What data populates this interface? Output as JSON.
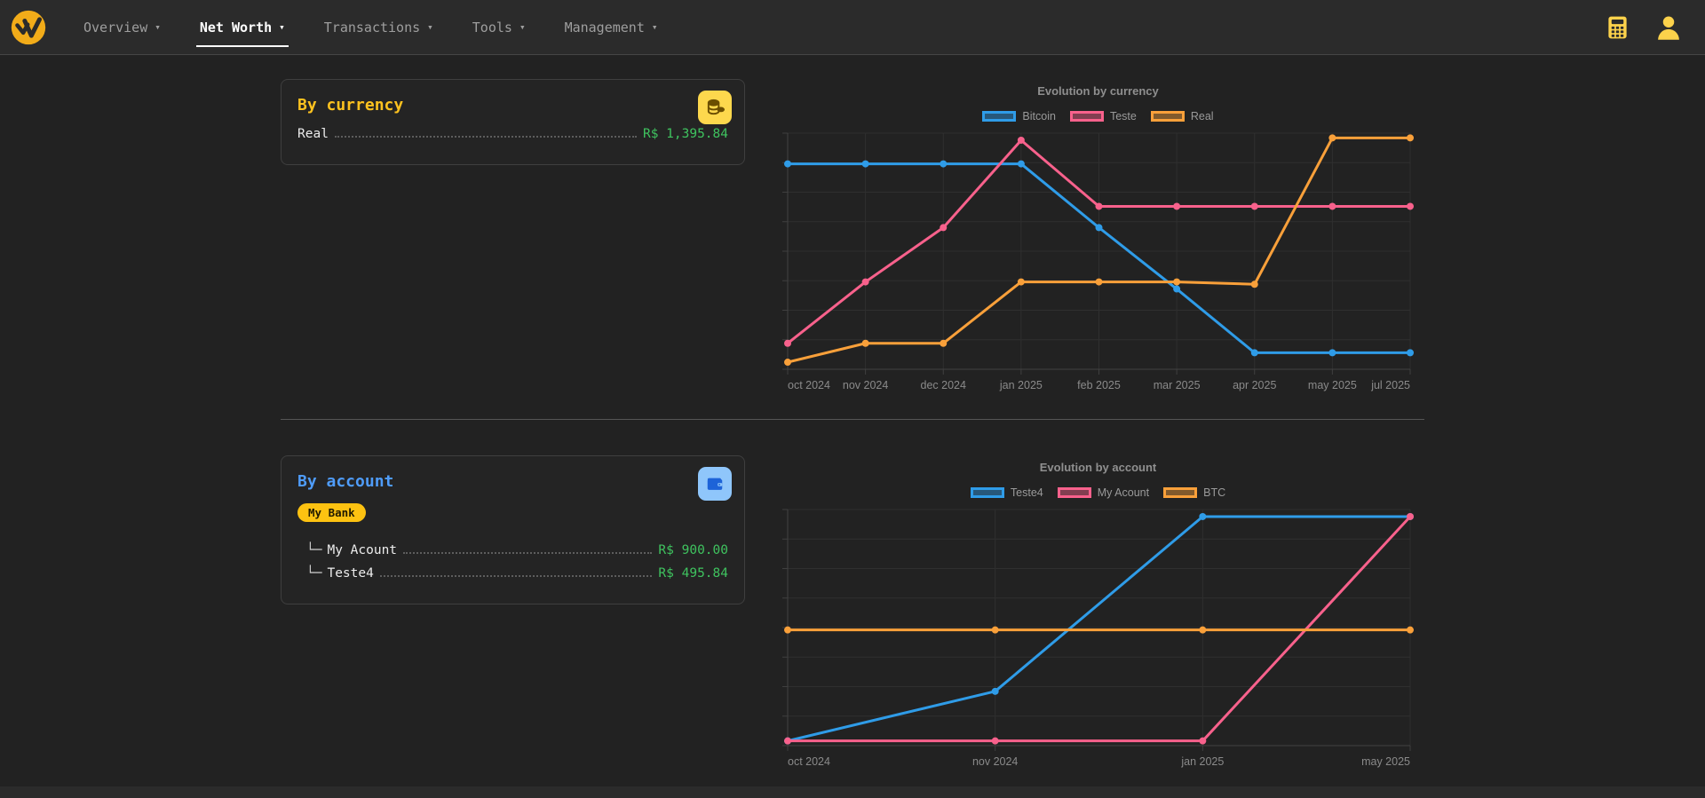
{
  "nav": {
    "items": [
      {
        "label": "Overview",
        "active": false
      },
      {
        "label": "Net Worth",
        "active": true
      },
      {
        "label": "Transactions",
        "active": false
      },
      {
        "label": "Tools",
        "active": false
      },
      {
        "label": "Management",
        "active": false
      }
    ],
    "caret": "▾",
    "right_icons": [
      "calculator-icon",
      "user-icon"
    ]
  },
  "colors": {
    "accent_yellow": "#fdc21f",
    "accent_blue": "#4f9cf9",
    "value_green": "#3fc35f",
    "series_blue": "#2f9ce8",
    "series_pink": "#f8618c",
    "series_orange": "#f9a03a"
  },
  "cards": {
    "by_currency": {
      "title": "By currency",
      "icon": "coins-icon",
      "rows": [
        {
          "label": "Real",
          "value": "R$ 1,395.84"
        }
      ]
    },
    "by_account": {
      "title": "By account",
      "icon": "wallet-icon",
      "group_badge": "My Bank",
      "rows": [
        {
          "prefix": "└─",
          "label": "My Acount",
          "value": "R$ 900.00"
        },
        {
          "prefix": "└─",
          "label": "Teste4",
          "value": "R$ 495.84"
        }
      ]
    }
  },
  "chart_data": [
    {
      "type": "line",
      "name": "evolution-by-currency-chart",
      "title": "Evolution by currency",
      "categories": [
        "oct 2024",
        "nov 2024",
        "dec 2024",
        "jan 2025",
        "feb 2025",
        "mar 2025",
        "apr 2025",
        "may 2025",
        "jul 2025"
      ],
      "series": [
        {
          "name": "Bitcoin",
          "color": "#2f9ce8",
          "values": [
            87,
            87,
            87,
            87,
            60,
            34,
            7,
            7,
            7
          ]
        },
        {
          "name": "Teste",
          "color": "#f8618c",
          "values": [
            11,
            37,
            60,
            97,
            69,
            69,
            69,
            69,
            69
          ]
        },
        {
          "name": "Real",
          "color": "#f9a03a",
          "values": [
            3,
            11,
            11,
            37,
            37,
            37,
            36,
            98,
            98
          ]
        }
      ],
      "value_unit": "percent-of-plot-height (y-axis shows no labels in UI)",
      "ylim": [
        0,
        100
      ],
      "grid": true,
      "legend_position": "top"
    },
    {
      "type": "line",
      "name": "evolution-by-account-chart",
      "title": "Evolution by account",
      "categories": [
        "oct 2024",
        "nov 2024",
        "jan 2025",
        "may 2025"
      ],
      "series": [
        {
          "name": "Teste4",
          "color": "#2f9ce8",
          "values": [
            2,
            23,
            97,
            97
          ]
        },
        {
          "name": "My Acount",
          "color": "#f8618c",
          "values": [
            2,
            2,
            2,
            97
          ]
        },
        {
          "name": "BTC",
          "color": "#f9a03a",
          "values": [
            49,
            49,
            49,
            49
          ]
        }
      ],
      "value_unit": "percent-of-plot-height (y-axis shows no labels in UI)",
      "ylim": [
        0,
        100
      ],
      "grid": true,
      "legend_position": "top"
    }
  ]
}
